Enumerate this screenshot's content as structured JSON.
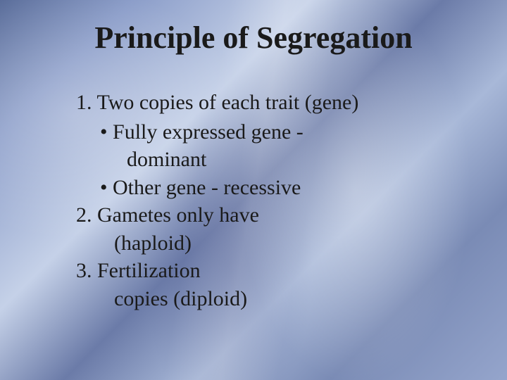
{
  "slide": {
    "title": "Principle of Segregation",
    "title_fontsize": 44,
    "title_color": "#1a1a1a",
    "body_fontsize": 30,
    "body_color": "#1a1a1a",
    "line_height": 1.25,
    "items": {
      "one": "1. Two copies of each trait (gene)",
      "one_sub_a": "• Fully expressed gene -",
      "one_sub_a_cont": "dominant",
      "one_sub_b": "• Other gene - recessive",
      "two": "2. Gametes only have",
      "two_cont": "(haploid)",
      "three": "3. Fertilization",
      "three_cont": "copies (diploid)"
    }
  },
  "style": {
    "background_colors": [
      "#5a6d9a",
      "#8b9dc9",
      "#c5d1e8",
      "#6b7ba8",
      "#a8b8d8",
      "#7a8bb5",
      "#95a5cc"
    ],
    "font_family": "Georgia, serif"
  }
}
